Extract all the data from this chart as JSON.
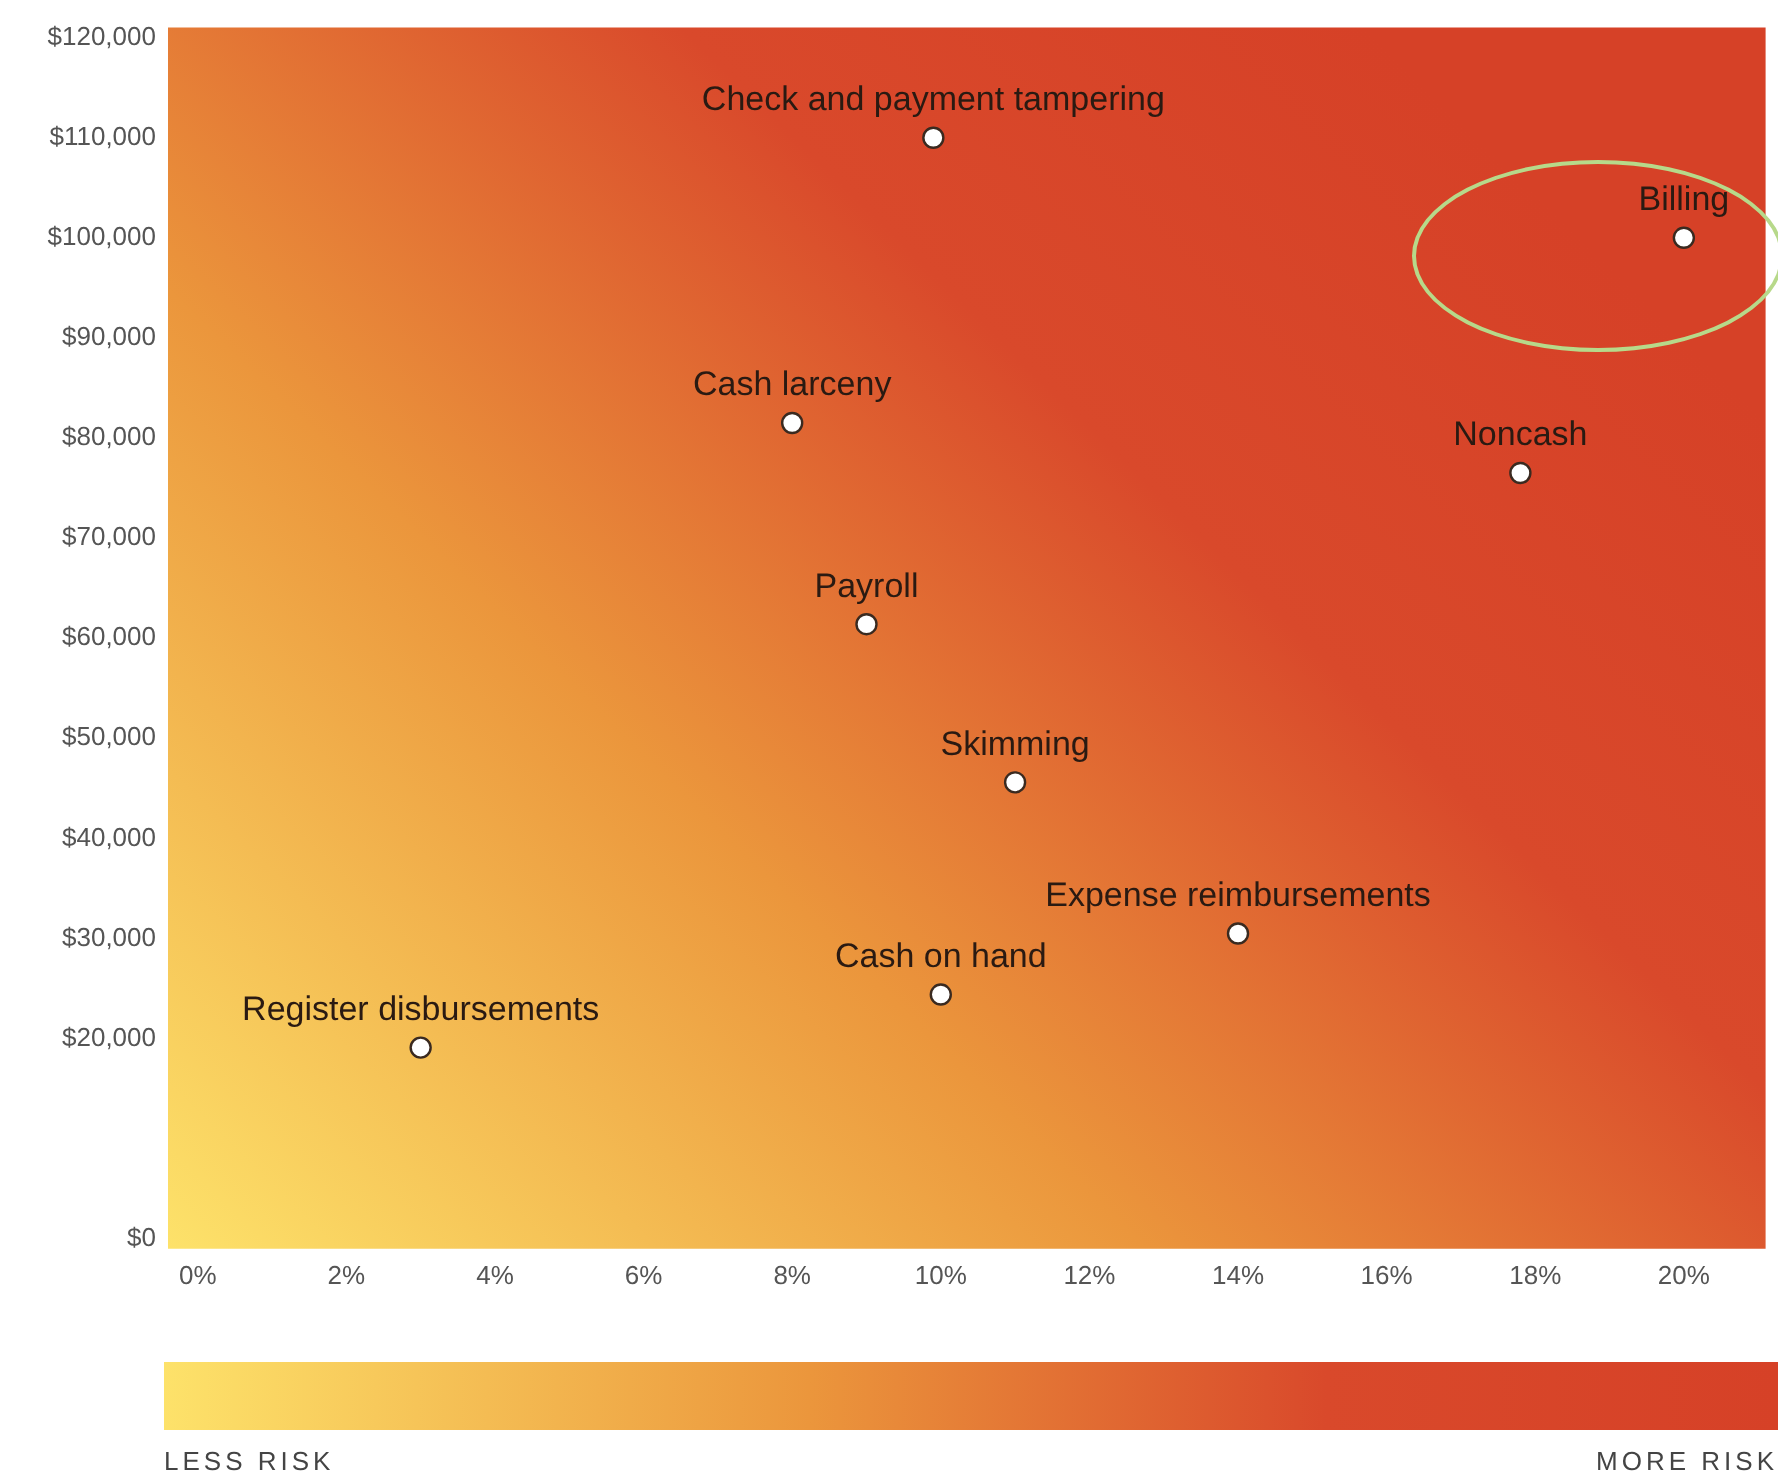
{
  "chart_data": {
    "type": "scatter",
    "marker": "circle",
    "legend": false,
    "grid": false,
    "xlim": [
      -0.4,
      21.1
    ],
    "xticks": [
      {
        "value": 0,
        "label": "0%"
      },
      {
        "value": 2,
        "label": "2%"
      },
      {
        "value": 4,
        "label": "4%"
      },
      {
        "value": 6,
        "label": "6%"
      },
      {
        "value": 8,
        "label": "8%"
      },
      {
        "value": 10,
        "label": "10%"
      },
      {
        "value": 12,
        "label": "12%"
      },
      {
        "value": 14,
        "label": "14%"
      },
      {
        "value": 16,
        "label": "16%"
      },
      {
        "value": 18,
        "label": "18%"
      },
      {
        "value": 20,
        "label": "20%"
      }
    ],
    "ylim": [
      -1000,
      121000
    ],
    "yticks": [
      {
        "value": 0,
        "label": "$0"
      },
      {
        "value": 20000,
        "label": "$20,000"
      },
      {
        "value": 30000,
        "label": "$30,000"
      },
      {
        "value": 40000,
        "label": "$40,000"
      },
      {
        "value": 50000,
        "label": "$50,000"
      },
      {
        "value": 60000,
        "label": "$60,000"
      },
      {
        "value": 70000,
        "label": "$70,000"
      },
      {
        "value": 80000,
        "label": "$80,000"
      },
      {
        "value": 90000,
        "label": "$90,000"
      },
      {
        "value": 100000,
        "label": "$100,000"
      },
      {
        "value": 110000,
        "label": "$110,000"
      },
      {
        "value": 120000,
        "label": "$120,000"
      }
    ],
    "series": [
      {
        "name": "Check and payment tampering",
        "color": "#ffffff",
        "x": [
          9.9
        ],
        "values": [
          110000
        ]
      },
      {
        "name": "Billing",
        "color": "#ffffff",
        "x": [
          20
        ],
        "values": [
          100000
        ]
      },
      {
        "name": "Cash larceny",
        "color": "#ffffff",
        "x": [
          8
        ],
        "values": [
          81500
        ]
      },
      {
        "name": "Noncash",
        "color": "#ffffff",
        "x": [
          17.8
        ],
        "values": [
          76500
        ]
      },
      {
        "name": "Payroll",
        "color": "#ffffff",
        "x": [
          9
        ],
        "values": [
          61400
        ]
      },
      {
        "name": "Skimming",
        "color": "#ffffff",
        "x": [
          11
        ],
        "values": [
          45600
        ]
      },
      {
        "name": "Expense reimbursements",
        "color": "#ffffff",
        "x": [
          14
        ],
        "values": [
          30500
        ]
      },
      {
        "name": "Cash on hand",
        "color": "#ffffff",
        "x": [
          10
        ],
        "values": [
          24400
        ]
      },
      {
        "name": "Register disbursements",
        "color": "#ffffff",
        "x": [
          3
        ],
        "values": [
          19100
        ]
      }
    ],
    "annotations": [
      "LESS RISK",
      "MORE RISK"
    ]
  }
}
